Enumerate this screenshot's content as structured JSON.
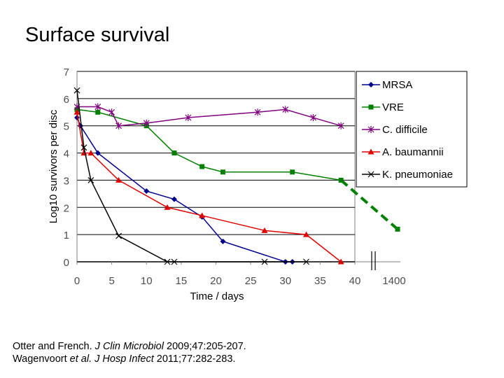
{
  "slide": {
    "title": "Surface survival"
  },
  "references": [
    {
      "authors": "Otter and French.",
      "journal": "J Clin Microbiol",
      "details": "2009;47:205-207."
    },
    {
      "authors": "Wagenvoort",
      "etal": "et al.",
      "journal": "J Hosp Infect",
      "details": "2011;77:282-283."
    }
  ],
  "chart_data": {
    "type": "line",
    "title": "",
    "xlabel": "Time / days",
    "ylabel": "Log10 survivors per disc",
    "xlim": [
      0,
      40
    ],
    "ylim": [
      0,
      7
    ],
    "xticks": [
      0,
      5,
      10,
      15,
      20,
      25,
      30,
      35,
      40
    ],
    "yticks": [
      0,
      1,
      2,
      3,
      4,
      5,
      6,
      7
    ],
    "broken_axis_tick": {
      "label": "1400",
      "value": 1400
    },
    "grid": "horizontal",
    "legend_position": "right",
    "series": [
      {
        "name": "MRSA",
        "color": "#00008b",
        "marker": "diamond",
        "x": [
          0,
          0.5,
          3,
          10,
          14,
          18,
          21,
          30,
          31
        ],
        "y": [
          5.3,
          5.0,
          4.0,
          2.6,
          2.3,
          1.65,
          0.75,
          0.0,
          0.0
        ]
      },
      {
        "name": "VRE",
        "color": "#008000",
        "marker": "square",
        "x": [
          0,
          3,
          10,
          14,
          18,
          21,
          31,
          38
        ],
        "y": [
          5.6,
          5.5,
          5.0,
          4.0,
          3.5,
          3.3,
          3.3,
          3.0
        ],
        "extension": {
          "x": 1400,
          "y": 1.2,
          "style": "dashed"
        }
      },
      {
        "name": "C. difficile",
        "color": "#800080",
        "marker": "asterisk",
        "x": [
          0,
          3,
          5,
          6,
          10,
          16,
          26,
          30,
          34,
          38
        ],
        "y": [
          5.7,
          5.7,
          5.5,
          5.0,
          5.1,
          5.3,
          5.5,
          5.6,
          5.3,
          5.0
        ]
      },
      {
        "name": "A. baumannii",
        "color": "#e00000",
        "marker": "triangle",
        "x": [
          0,
          1,
          2,
          6,
          13,
          18,
          27,
          33,
          38
        ],
        "y": [
          5.5,
          4.0,
          4.0,
          3.0,
          2.0,
          1.7,
          1.15,
          1.0,
          0.0
        ]
      },
      {
        "name": "K. pneumoniae",
        "color": "#000000",
        "marker": "x",
        "x": [
          0,
          1,
          2,
          6,
          13,
          14,
          27,
          33
        ],
        "y": [
          6.3,
          4.2,
          3.0,
          0.95,
          0.0,
          0.0,
          0.0,
          0.0
        ]
      }
    ]
  }
}
